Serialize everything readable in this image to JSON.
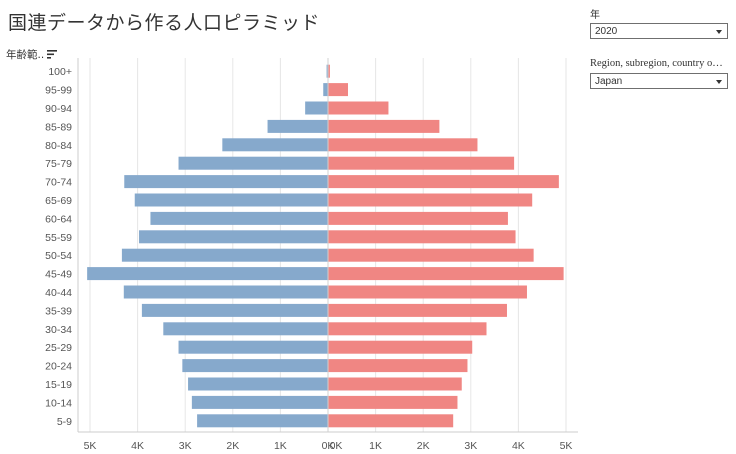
{
  "title": "国連データから作る人口ピラミッド",
  "field_header": "年齢範..",
  "filters": {
    "year_label": "年",
    "year_value": "2020",
    "region_label": "Region, subregion, country o…",
    "region_value": "Japan"
  },
  "colors": {
    "left": "#86a9cc",
    "right": "#f08683",
    "grid": "#e6e6e6",
    "axis": "#cccccc",
    "text": "#555555"
  },
  "chart_data": {
    "type": "bar",
    "orientation": "horizontal-butterfly",
    "categories": [
      "100+",
      "95-99",
      "90-94",
      "85-89",
      "80-84",
      "75-79",
      "70-74",
      "65-69",
      "60-64",
      "55-59",
      "50-54",
      "45-49",
      "40-44",
      "35-39",
      "30-34",
      "25-29",
      "20-24",
      "15-19",
      "10-14",
      "5-9"
    ],
    "series": [
      {
        "side": "left",
        "values": [
          30,
          100,
          480,
          1270,
          2220,
          3140,
          4280,
          4060,
          3730,
          3970,
          4330,
          5060,
          4290,
          3910,
          3460,
          3140,
          3060,
          2940,
          2860,
          2750
        ]
      },
      {
        "side": "right",
        "values": [
          40,
          420,
          1270,
          2340,
          3140,
          3910,
          4850,
          4290,
          3780,
          3940,
          4320,
          4950,
          4180,
          3760,
          3330,
          3030,
          2930,
          2810,
          2720,
          2630
        ]
      }
    ],
    "left_ticks": [
      "5K",
      "4K",
      "3K",
      "2K",
      "1K",
      "0K"
    ],
    "right_ticks": [
      "0K",
      "1K",
      "2K",
      "3K",
      "4K",
      "5K"
    ],
    "xlim_left": [
      0,
      5000
    ],
    "xlim_right": [
      0,
      5000
    ],
    "grid": true
  }
}
